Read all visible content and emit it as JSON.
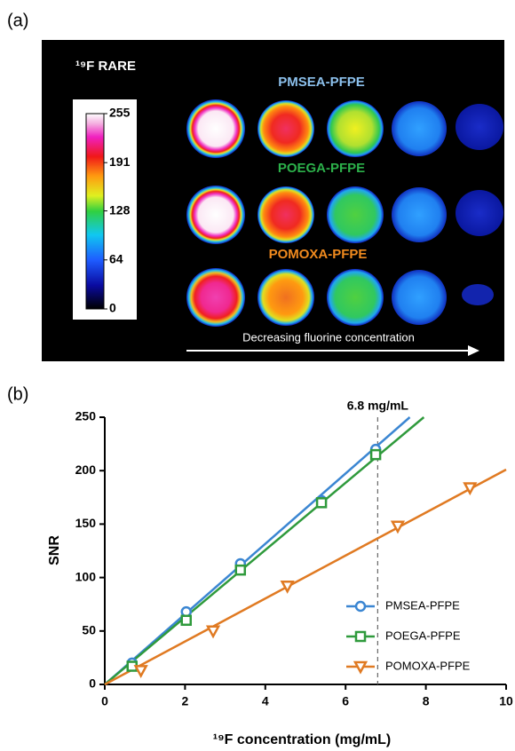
{
  "panel_a": {
    "label": "(a)",
    "title": "¹⁹F RARE",
    "colorbar": {
      "ticks": [
        255,
        191,
        128,
        64,
        0
      ]
    },
    "rows": [
      "PMSEA-PFPE",
      "POEGA-PFPE",
      "POMOXA-PFPE"
    ],
    "caption": "Decreasing fluorine concentration"
  },
  "chart_data": {
    "type": "scatter",
    "panel_label": "(b)",
    "x_label": "¹⁹F concentration (mg/mL)",
    "y_label": "SNR",
    "xlim": [
      0,
      10
    ],
    "xticks": [
      0,
      2,
      4,
      6,
      8,
      10
    ],
    "ylim": [
      0,
      250
    ],
    "yticks": [
      0,
      50,
      100,
      150,
      200,
      250
    ],
    "grid": false,
    "legend": "lower right",
    "annotation": {
      "text": "6.8 mg/mL",
      "x": 6.8
    },
    "series": [
      {
        "name": "PMSEA-PFPE",
        "color": "#3b86d2",
        "marker": "circle",
        "x": [
          0.68,
          2.03,
          3.38,
          5.4,
          6.75
        ],
        "values": [
          20,
          68,
          113,
          172,
          220
        ],
        "fit": {
          "x": [
            0,
            7.6
          ],
          "y": [
            0,
            250
          ]
        }
      },
      {
        "name": "POEGA-PFPE",
        "color": "#2f9a3c",
        "marker": "square",
        "x": [
          0.68,
          2.03,
          3.38,
          5.4,
          6.75
        ],
        "values": [
          17,
          60,
          107,
          170,
          215
        ],
        "fit": {
          "x": [
            0,
            7.95
          ],
          "y": [
            0,
            250
          ]
        }
      },
      {
        "name": "POMOXA-PFPE",
        "color": "#e07a22",
        "marker": "triangle-down",
        "x": [
          0.9,
          2.7,
          4.55,
          7.3,
          9.1
        ],
        "values": [
          13,
          50,
          92,
          148,
          184
        ],
        "fit": {
          "x": [
            0,
            10
          ],
          "y": [
            0,
            201
          ]
        }
      }
    ]
  }
}
